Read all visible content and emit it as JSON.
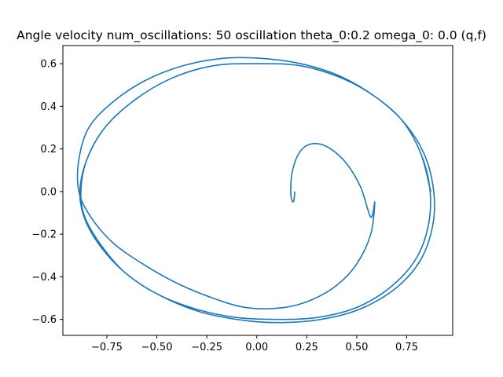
{
  "chart_data": {
    "type": "line",
    "title": "Angle velocity num_oscillations: 50 oscillation theta_0:0.2 omega_0: 0.0 (q,f)",
    "xlabel": "",
    "ylabel": "",
    "xlim": [
      -0.97,
      0.98
    ],
    "ylim": [
      -0.675,
      0.685
    ],
    "xticks": [
      -0.75,
      -0.5,
      -0.25,
      0.0,
      0.25,
      0.5,
      0.75
    ],
    "xtick_labels": [
      "−0.75",
      "−0.50",
      "−0.25",
      "0.00",
      "0.25",
      "0.50",
      "0.75"
    ],
    "yticks": [
      -0.6,
      -0.4,
      -0.2,
      0.0,
      0.2,
      0.4,
      0.6
    ],
    "ytick_labels": [
      "−0.6",
      "−0.4",
      "−0.2",
      "0.0",
      "0.2",
      "0.4",
      "0.6"
    ],
    "grid": false,
    "color": "#1f77b4",
    "series": [
      {
        "x": [
          0.19,
          0.185,
          0.175,
          0.17,
          0.175,
          0.2,
          0.24,
          0.3,
          0.37,
          0.45,
          0.52,
          0.57,
          0.59,
          0.57,
          0.5,
          0.4,
          0.27,
          0.13,
          -0.05,
          -0.22,
          -0.4,
          -0.57,
          -0.72,
          -0.83,
          -0.89,
          -0.89,
          -0.84,
          -0.72,
          -0.56,
          -0.37,
          -0.17,
          0.02,
          0.22,
          0.42,
          0.6,
          0.74,
          0.84,
          0.885,
          0.88,
          0.82,
          0.7,
          0.52,
          0.32,
          0.1,
          -0.1,
          -0.3,
          -0.5,
          -0.66,
          -0.78,
          -0.86,
          -0.88,
          -0.85,
          -0.76,
          -0.61,
          -0.43,
          -0.22,
          0.0,
          0.22,
          0.43,
          0.6,
          0.73,
          0.82,
          0.865,
          0.86,
          0.8,
          0.68,
          0.51,
          0.31,
          0.1,
          -0.11,
          -0.31,
          -0.5,
          -0.66,
          -0.78,
          -0.86,
          -0.885,
          -0.85,
          -0.76,
          -0.61,
          -0.43,
          -0.22,
          0.0,
          0.22,
          0.43,
          0.6,
          0.73,
          0.82,
          0.865,
          0.87
        ],
        "y": [
          0.0,
          -0.045,
          -0.04,
          0.0,
          0.08,
          0.16,
          0.21,
          0.225,
          0.2,
          0.13,
          0.02,
          -0.12,
          -0.05,
          -0.2,
          -0.34,
          -0.44,
          -0.51,
          -0.545,
          -0.545,
          -0.5,
          -0.43,
          -0.34,
          -0.24,
          -0.12,
          0.0,
          0.15,
          0.3,
          0.42,
          0.52,
          0.59,
          0.625,
          0.625,
          0.6,
          0.54,
          0.44,
          0.32,
          0.17,
          0.0,
          -0.16,
          -0.32,
          -0.45,
          -0.55,
          -0.6,
          -0.615,
          -0.6,
          -0.56,
          -0.48,
          -0.38,
          -0.25,
          -0.12,
          0.0,
          0.15,
          0.3,
          0.43,
          0.53,
          0.59,
          0.6,
          0.59,
          0.53,
          0.44,
          0.33,
          0.18,
          0.02,
          -0.15,
          -0.31,
          -0.44,
          -0.54,
          -0.59,
          -0.6,
          -0.59,
          -0.55,
          -0.48,
          -0.38,
          -0.26,
          -0.13,
          0.0,
          0.15,
          0.3,
          0.43,
          0.53,
          0.59,
          0.6,
          0.59,
          0.53,
          0.44,
          0.33,
          0.18,
          0.02,
          0.0
        ]
      }
    ]
  }
}
